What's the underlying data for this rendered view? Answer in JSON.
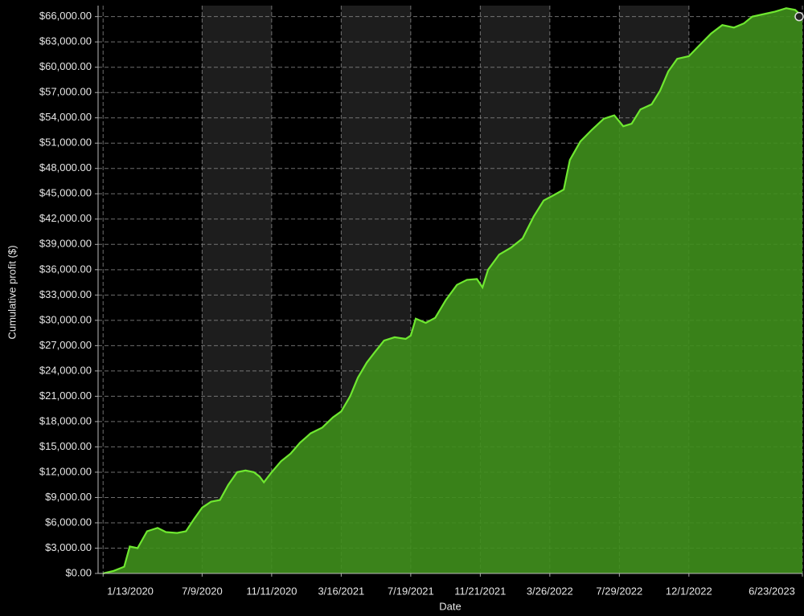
{
  "chart_data": {
    "type": "area",
    "y_label": "Cumulative profit ($)",
    "x_label": "Date",
    "color": "#3f8f1c",
    "line_color": "#6fe830",
    "grid": true,
    "shaded_bands": true,
    "x": [
      "1/13/2020",
      "2/1/2020",
      "2/20/2020",
      "3/1/2020",
      "3/15/2020",
      "4/1/2020",
      "4/20/2020",
      "5/5/2020",
      "5/25/2020",
      "6/10/2020",
      "6/25/2020",
      "7/9/2020",
      "7/25/2020",
      "8/10/2020",
      "8/25/2020",
      "9/10/2020",
      "9/25/2020",
      "10/10/2020",
      "10/20/2020",
      "10/28/2020",
      "11/11/2020",
      "11/28/2020",
      "12/15/2020",
      "1/1/2021",
      "1/20/2021",
      "2/10/2021",
      "3/1/2021",
      "3/16/2021",
      "4/1/2021",
      "4/15/2021",
      "5/1/2021",
      "5/15/2021",
      "6/1/2021",
      "6/20/2021",
      "7/10/2021",
      "7/19/2021",
      "7/28/2021",
      "8/15/2021",
      "9/1/2021",
      "9/20/2021",
      "10/10/2021",
      "10/28/2021",
      "11/15/2021",
      "11/25/2021",
      "12/5/2021",
      "12/25/2021",
      "1/15/2022",
      "2/5/2022",
      "2/25/2022",
      "3/15/2022",
      "4/1/2022",
      "4/20/2022",
      "5/1/2022",
      "5/20/2022",
      "6/10/2022",
      "7/1/2022",
      "7/20/2022",
      "8/5/2022",
      "8/20/2022",
      "9/5/2022",
      "9/25/2022",
      "10/10/2022",
      "10/25/2022",
      "11/10/2022",
      "12/1/2022",
      "12/20/2022",
      "1/10/2023",
      "1/30/2023",
      "2/20/2023",
      "3/10/2023",
      "3/25/2023",
      "4/15/2023",
      "5/5/2023",
      "5/25/2023",
      "6/10/2023",
      "6/23/2023"
    ],
    "values": [
      0,
      300,
      800,
      3200,
      3000,
      5000,
      5400,
      4900,
      4800,
      5000,
      6500,
      7800,
      8500,
      8700,
      10500,
      12000,
      12200,
      12000,
      11500,
      10800,
      12000,
      13300,
      14200,
      15500,
      16600,
      17300,
      18500,
      19200,
      21000,
      23200,
      25000,
      26200,
      27600,
      28000,
      27800,
      28200,
      30200,
      29700,
      30300,
      32400,
      34200,
      34800,
      34900,
      33900,
      36000,
      37800,
      38600,
      39700,
      42300,
      44200,
      44800,
      45500,
      49000,
      51200,
      52600,
      53900,
      54300,
      53000,
      53300,
      55000,
      55600,
      57200,
      59500,
      61000,
      61300,
      62600,
      64000,
      65000,
      64700,
      65200,
      66000,
      66300,
      66600,
      67000,
      66800,
      66000
    ],
    "xlim": [
      "1/4/2020",
      "6/23/2023"
    ],
    "xticks": [
      "1/13/2020",
      "7/9/2020",
      "11/11/2020",
      "3/16/2021",
      "7/19/2021",
      "11/21/2021",
      "3/26/2022",
      "7/29/2022",
      "12/1/2022",
      "6/23/2023"
    ],
    "ylim": [
      0,
      67300
    ],
    "yticks": [
      {
        "value": 0,
        "label": "$0.00"
      },
      {
        "value": 3000,
        "label": "$3,000.00"
      },
      {
        "value": 6000,
        "label": "$6,000.00"
      },
      {
        "value": 9000,
        "label": "$9,000.00"
      },
      {
        "value": 12000,
        "label": "$12,000.00"
      },
      {
        "value": 15000,
        "label": "$15,000.00"
      },
      {
        "value": 18000,
        "label": "$18,000.00"
      },
      {
        "value": 21000,
        "label": "$21,000.00"
      },
      {
        "value": 24000,
        "label": "$24,000.00"
      },
      {
        "value": 27000,
        "label": "$27,000.00"
      },
      {
        "value": 30000,
        "label": "$30,000.00"
      },
      {
        "value": 33000,
        "label": "$33,000.00"
      },
      {
        "value": 36000,
        "label": "$36,000.00"
      },
      {
        "value": 39000,
        "label": "$39,000.00"
      },
      {
        "value": 42000,
        "label": "$42,000.00"
      },
      {
        "value": 45000,
        "label": "$45,000.00"
      },
      {
        "value": 48000,
        "label": "$48,000.00"
      },
      {
        "value": 51000,
        "label": "$51,000.00"
      },
      {
        "value": 54000,
        "label": "$54,000.00"
      },
      {
        "value": 57000,
        "label": "$57,000.00"
      },
      {
        "value": 60000,
        "label": "$60,000.00"
      },
      {
        "value": 63000,
        "label": "$63,000.00"
      },
      {
        "value": 66000,
        "label": "$66,000.00"
      }
    ]
  }
}
